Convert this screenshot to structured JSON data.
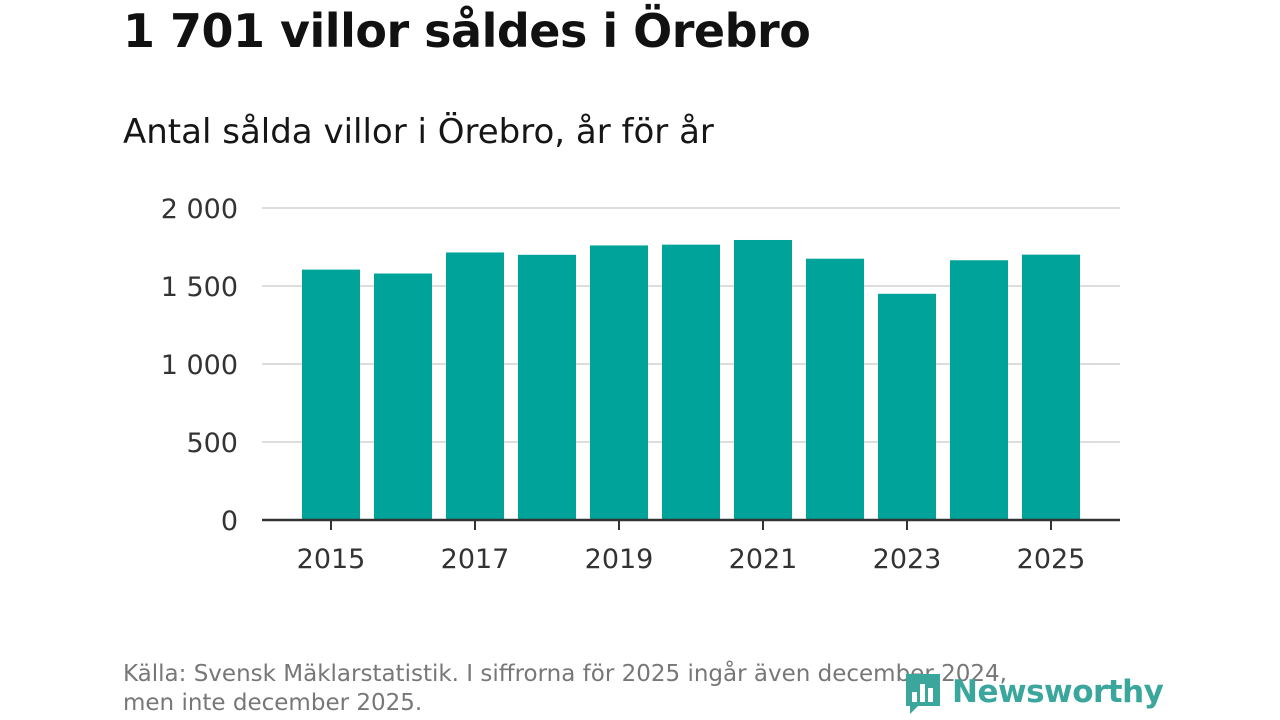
{
  "header": {
    "title": "1 701 villor såldes i Örebro",
    "subtitle": "Antal sålda villor i Örebro, år för år"
  },
  "footer": {
    "source_line1": "Källa: Svensk Mäklarstatistik. I siffrorna för 2025 ingår även december 2024,",
    "source_line2": "men inte december 2025.",
    "logo_text": "Newsworthy"
  },
  "colors": {
    "bar": "#00a39a",
    "grid": "#dddddd",
    "axis": "#333333",
    "logo": "#3aa69c"
  },
  "chart_data": {
    "type": "bar",
    "title": "Antal sålda villor i Örebro, år för år",
    "xlabel": "",
    "ylabel": "",
    "categories": [
      "2015",
      "2016",
      "2017",
      "2018",
      "2019",
      "2020",
      "2021",
      "2022",
      "2023",
      "2024",
      "2025"
    ],
    "values": [
      1605,
      1580,
      1715,
      1700,
      1760,
      1765,
      1795,
      1675,
      1450,
      1665,
      1701
    ],
    "ylim": [
      0,
      2000
    ],
    "yticks": [
      0,
      500,
      1000,
      1500,
      2000
    ],
    "ytick_labels": [
      "0",
      "500",
      "1 000",
      "1 500",
      "2 000"
    ],
    "xtick_labels": [
      "2015",
      "2017",
      "2019",
      "2021",
      "2023",
      "2025"
    ],
    "grid": true
  }
}
